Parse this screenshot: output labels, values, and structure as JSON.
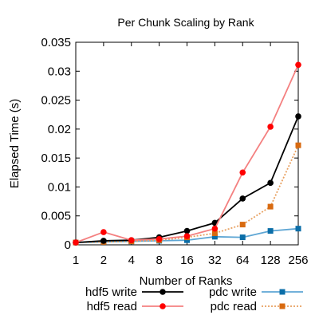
{
  "chart_data": {
    "type": "line",
    "title": "Per Chunk Scaling by Rank",
    "xlabel": "Number of Ranks",
    "ylabel": "Elapsed Time (s)",
    "x_scale": "log2",
    "categories": [
      "1",
      "2",
      "4",
      "8",
      "16",
      "32",
      "64",
      "128",
      "256"
    ],
    "x": [
      1,
      2,
      4,
      8,
      16,
      32,
      64,
      128,
      256
    ],
    "ylim": [
      0,
      0.035
    ],
    "yticks": [
      "0",
      "0.005",
      "0.01",
      "0.015",
      "0.02",
      "0.025",
      "0.03",
      "0.035"
    ],
    "ytick_values": [
      0,
      0.005,
      0.01,
      0.015,
      0.02,
      0.025,
      0.03,
      0.035
    ],
    "grid": false,
    "legend_position": "bottom",
    "series": [
      {
        "name": "hdf5 write",
        "color": "#000000",
        "marker": "circle",
        "line": "solid",
        "values": [
          0.0004,
          0.0007,
          0.0008,
          0.0013,
          0.0024,
          0.0038,
          0.008,
          0.0107,
          0.0222
        ]
      },
      {
        "name": "hdf5 read",
        "color": "#ff0000",
        "line_color": "#f48080",
        "marker": "circle",
        "line": "solid",
        "values": [
          0.0004,
          0.0022,
          0.0008,
          0.001,
          0.0015,
          0.0028,
          0.0125,
          0.0204,
          0.0311
        ]
      },
      {
        "name": "pdc write",
        "color": "#0b6ea8",
        "line_color": "#5ea6d4",
        "marker": "square",
        "line": "solid",
        "values": [
          0.0004,
          0.0005,
          0.0006,
          0.0007,
          0.0008,
          0.0014,
          0.0013,
          0.0024,
          0.0028
        ]
      },
      {
        "name": "pdc read",
        "color": "#d86a10",
        "line_color": "#e8a060",
        "marker": "square",
        "line": "dotted",
        "values": [
          0.0004,
          0.0005,
          0.0006,
          0.0008,
          0.0013,
          0.002,
          0.0035,
          0.0066,
          0.0172
        ]
      }
    ]
  }
}
